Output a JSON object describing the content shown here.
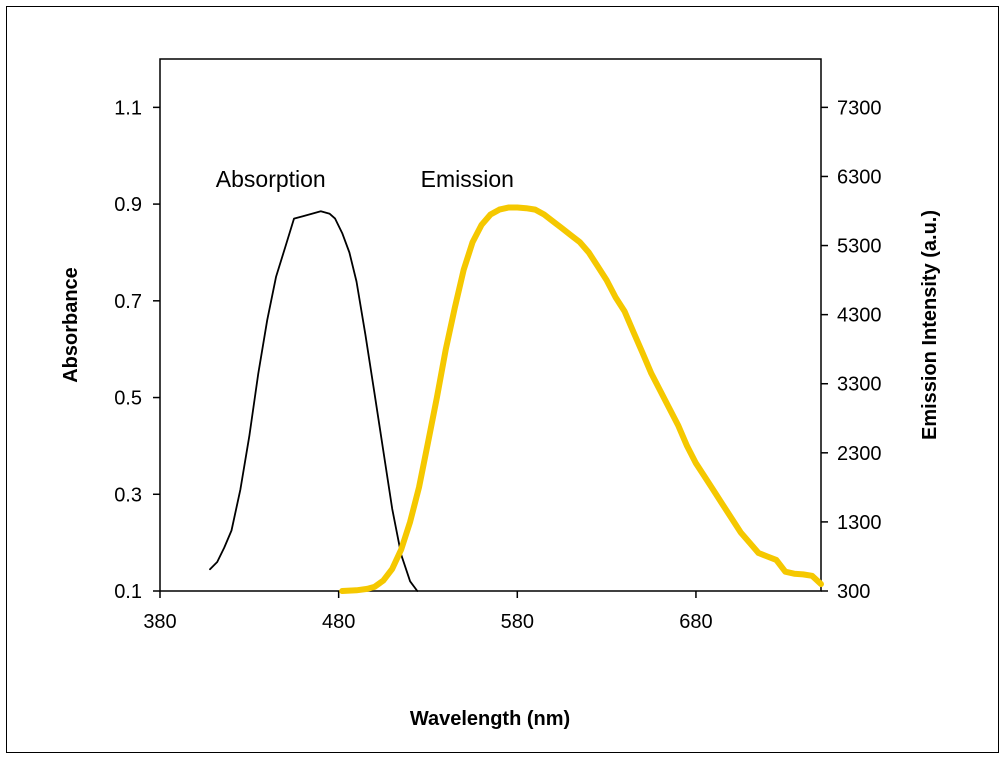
{
  "chart_data": {
    "type": "line",
    "title": "",
    "xlabel": "Wavelength (nm)",
    "ylabel_left": "Absorbance",
    "ylabel_right": "Emission Intensity (a.u.)",
    "xlim": [
      380,
      750
    ],
    "ylim_left": [
      0.1,
      1.2
    ],
    "ylim_right": [
      300,
      8000
    ],
    "x_ticks": [
      380,
      480,
      580,
      680
    ],
    "y_left_ticks": [
      0.1,
      0.3,
      0.5,
      0.7,
      0.9,
      1.1
    ],
    "y_right_ticks": [
      300,
      1300,
      2300,
      3300,
      4300,
      5300,
      6300,
      7300
    ],
    "grid": false,
    "legend": "none",
    "annotations": [
      {
        "text": "Absorption",
        "x": 442,
        "y": 0.935
      },
      {
        "text": "Emission",
        "x": 552,
        "y": 0.935
      }
    ],
    "series": [
      {
        "name": "Absorption",
        "axis": "left",
        "color": "#000000",
        "x": [
          408,
          412,
          416,
          420,
          425,
          430,
          435,
          440,
          445,
          450,
          455,
          460,
          465,
          470,
          475,
          478,
          482,
          486,
          490,
          495,
          500,
          505,
          510,
          515,
          520,
          524
        ],
        "y": [
          0.145,
          0.16,
          0.19,
          0.225,
          0.31,
          0.42,
          0.55,
          0.66,
          0.75,
          0.81,
          0.87,
          0.875,
          0.88,
          0.885,
          0.88,
          0.87,
          0.84,
          0.8,
          0.74,
          0.63,
          0.51,
          0.39,
          0.27,
          0.175,
          0.12,
          0.1
        ]
      },
      {
        "name": "Emission",
        "axis": "right",
        "color": "#F5C800",
        "x": [
          482,
          490,
          496,
          500,
          505,
          510,
          515,
          520,
          525,
          530,
          535,
          540,
          545,
          550,
          555,
          560,
          565,
          570,
          575,
          580,
          585,
          590,
          595,
          600,
          605,
          610,
          615,
          620,
          625,
          630,
          635,
          640,
          645,
          650,
          655,
          660,
          665,
          670,
          675,
          680,
          685,
          690,
          695,
          700,
          705,
          710,
          715,
          720,
          725,
          730,
          735,
          740,
          745,
          750
        ],
        "y": [
          300,
          310,
          330,
          360,
          450,
          620,
          900,
          1300,
          1800,
          2450,
          3100,
          3800,
          4400,
          4950,
          5350,
          5600,
          5750,
          5820,
          5850,
          5850,
          5840,
          5820,
          5750,
          5650,
          5550,
          5450,
          5350,
          5200,
          5000,
          4800,
          4550,
          4350,
          4050,
          3750,
          3450,
          3200,
          2950,
          2700,
          2400,
          2150,
          1950,
          1750,
          1550,
          1350,
          1150,
          1000,
          850,
          800,
          750,
          580,
          550,
          540,
          520,
          400
        ]
      }
    ]
  }
}
